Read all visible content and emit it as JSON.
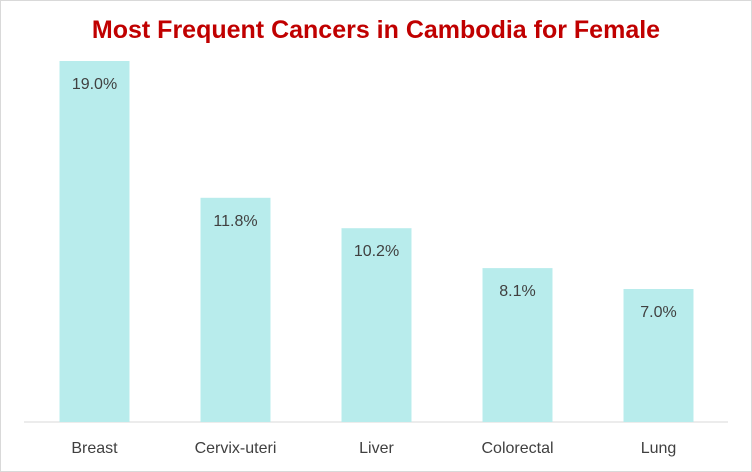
{
  "chart_data": {
    "type": "bar",
    "title": "Most Frequent Cancers in Cambodia for Female",
    "categories": [
      "Breast",
      "Cervix-uteri",
      "Liver",
      "Colorectal",
      "Lung"
    ],
    "values": [
      19.0,
      11.8,
      10.2,
      8.1,
      7.0
    ],
    "data_labels": [
      "19.0%",
      "11.8%",
      "10.2%",
      "8.1%",
      "7.0%"
    ],
    "unit": "%",
    "ylim": [
      0,
      20
    ],
    "grid": false,
    "legend": "none",
    "colors": {
      "bar": "#b8ecec",
      "title": "#c00000",
      "text": "#404040",
      "axis": "#d9d9d9"
    }
  }
}
